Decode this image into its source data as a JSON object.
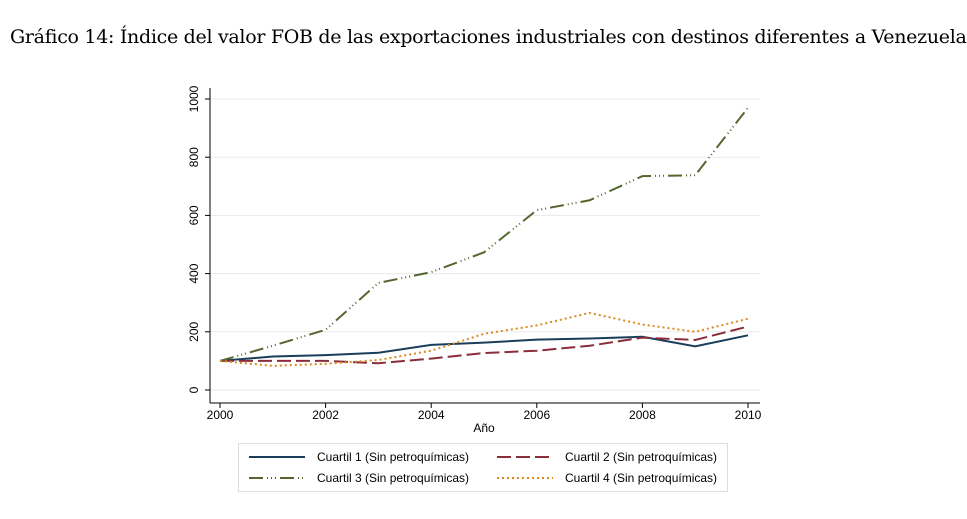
{
  "title": "Gráfico 14: Índice del valor FOB de las exportaciones industriales con destinos diferentes a Venezuela",
  "chart_data": {
    "type": "line",
    "title": "Gráfico 14: Índice del valor FOB de las exportaciones industriales con destinos diferentes a Venezuela",
    "xlabel": "Año",
    "ylabel": "",
    "x": [
      2000,
      2001,
      2002,
      2003,
      2004,
      2005,
      2006,
      2007,
      2008,
      2009,
      2010
    ],
    "xlim": [
      2000,
      2010
    ],
    "ylim": [
      0,
      1000
    ],
    "xticks": [
      "2000",
      "2002",
      "2004",
      "2006",
      "2008",
      "2010"
    ],
    "yticks": [
      "0",
      "200",
      "400",
      "600",
      "800",
      "1000"
    ],
    "grid": true,
    "legend_position": "bottom",
    "series": [
      {
        "name": "Cuartil 1 (Sin petroquímicas)",
        "color": "#1a3d5c",
        "dash": "solid",
        "values": [
          100,
          115,
          120,
          128,
          155,
          163,
          173,
          177,
          183,
          150,
          188
        ]
      },
      {
        "name": "Cuartil 2 (Sin petroquímicas)",
        "color": "#8b2e3a",
        "dash": "dash",
        "values": [
          100,
          100,
          100,
          92,
          108,
          127,
          135,
          152,
          180,
          172,
          218
        ]
      },
      {
        "name": "Cuartil 3 (Sin petroquímicas)",
        "color": "#55672f",
        "dash": "dashdotdot",
        "values": [
          100,
          152,
          207,
          368,
          405,
          473,
          618,
          652,
          735,
          738,
          970
        ]
      },
      {
        "name": "Cuartil 4 (Sin petroquímicas)",
        "color": "#d98a1f",
        "dash": "dot",
        "values": [
          100,
          83,
          90,
          103,
          135,
          193,
          222,
          265,
          225,
          200,
          245
        ]
      }
    ]
  }
}
